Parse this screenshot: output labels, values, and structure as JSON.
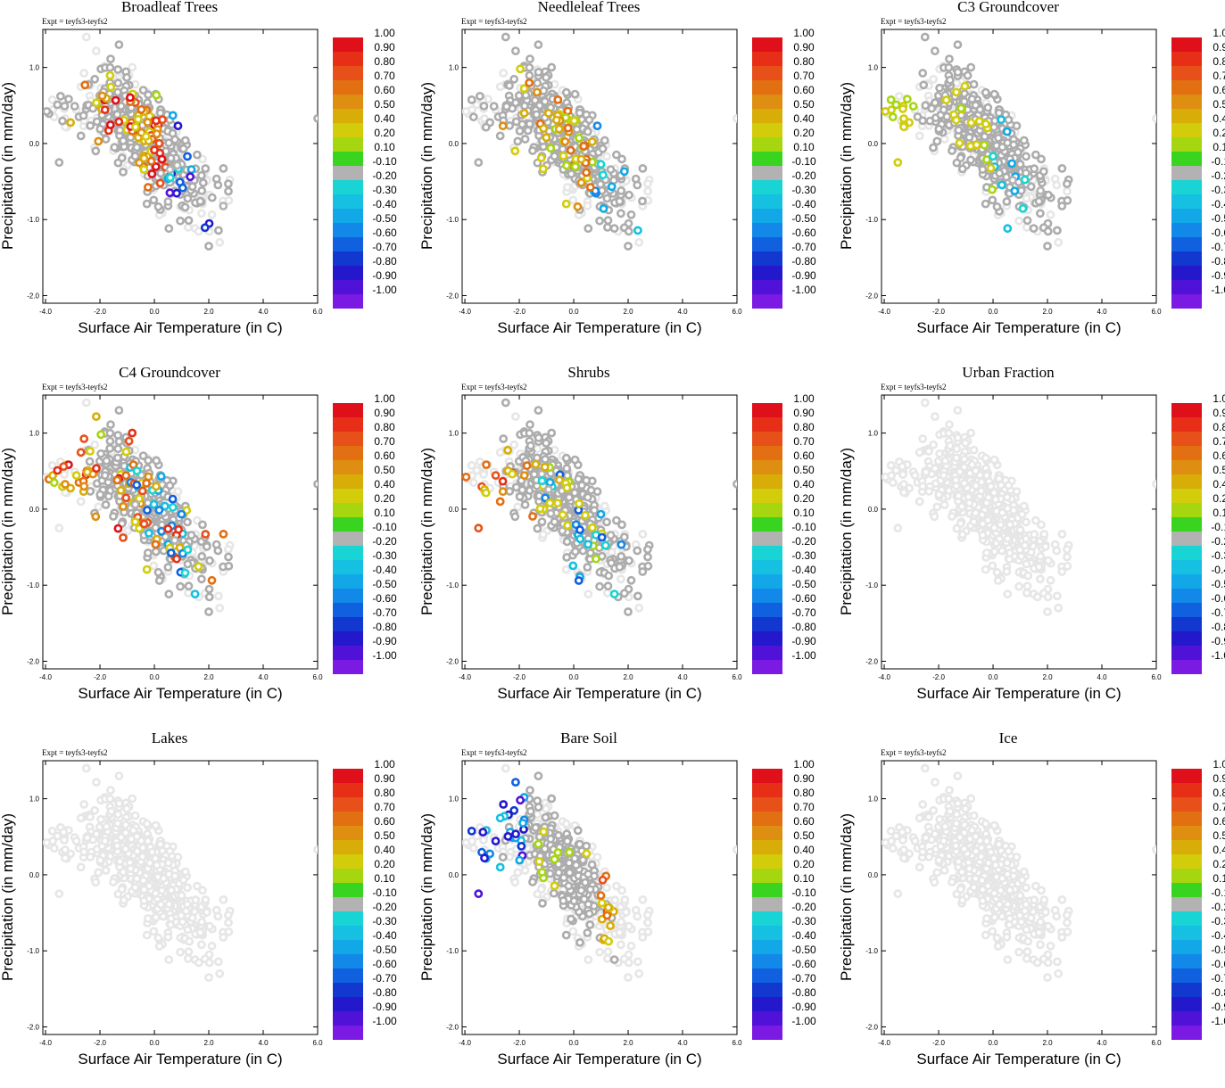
{
  "chart_data": [
    {
      "type": "scatter",
      "title": "Broadleaf Trees",
      "seed": 11,
      "kind": "broadleaf"
    },
    {
      "type": "scatter",
      "title": "Needleleaf Trees",
      "seed": 23,
      "kind": "needle"
    },
    {
      "type": "scatter",
      "title": "C3 Groundcover",
      "seed": 37,
      "kind": "c3"
    },
    {
      "type": "scatter",
      "title": "C4 Groundcover",
      "seed": 41,
      "kind": "c4"
    },
    {
      "type": "scatter",
      "title": "Shrubs",
      "seed": 53,
      "kind": "shrubs"
    },
    {
      "type": "scatter",
      "title": "Urban Fraction",
      "seed": 67,
      "kind": "empty"
    },
    {
      "type": "scatter",
      "title": "Lakes",
      "seed": 71,
      "kind": "empty"
    },
    {
      "type": "scatter",
      "title": "Bare Soil",
      "seed": 83,
      "kind": "baresoil"
    },
    {
      "type": "scatter",
      "title": "Ice",
      "seed": 97,
      "kind": "empty"
    }
  ],
  "common": {
    "experiment": "Expt = teyfs3-teyfs2",
    "xlabel": "Surface Air Temperature (in C)",
    "ylabel": "Precipitation (in mm/day)",
    "xlim": [
      -4.1,
      6.0
    ],
    "ylim": [
      -2.1,
      1.5
    ],
    "x_ticks": [
      "-4.0",
      "-2.0",
      "0.0",
      "2.0",
      "4.0",
      "6.0"
    ],
    "x_tick_values": [
      -4,
      -2,
      0,
      2,
      4,
      6
    ],
    "y_ticks": [
      "1.0",
      "0.0",
      "-1.0",
      "-2.0"
    ],
    "y_tick_values": [
      1,
      0,
      -1,
      -2
    ],
    "colorbar_labels": [
      "1.00",
      "0.90",
      "0.80",
      "0.70",
      "0.60",
      "0.50",
      "0.40",
      "0.20",
      "0.10",
      "-0.10",
      "-0.20",
      "-0.30",
      "-0.40",
      "-0.50",
      "-0.60",
      "-0.70",
      "-0.80",
      "-0.90",
      "-1.00"
    ],
    "colorbar_colors": [
      "#e0101a",
      "#e62f16",
      "#e8501a",
      "#e26f12",
      "#de8e10",
      "#d8ad08",
      "#d2cc0a",
      "#a6d610",
      "#38d420",
      "#b2b2b2",
      "#18d4d4",
      "#16c0e0",
      "#12a8e8",
      "#1288e8",
      "#1060e0",
      "#1238d0",
      "#2418cc",
      "#5012d8",
      "#7a1ae2"
    ],
    "colors": {
      "inactive": "#e6e6e6",
      "neutral": "#acacac"
    }
  }
}
